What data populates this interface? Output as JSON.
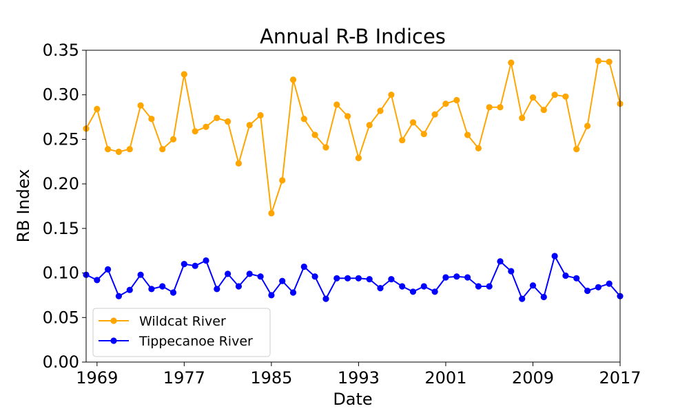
{
  "chart_data": {
    "type": "line",
    "title": "Annual R-B Indices",
    "xlabel": "Date",
    "ylabel": "RB Index",
    "xlim": [
      1968,
      2017
    ],
    "ylim": [
      0,
      0.35
    ],
    "x_ticks": [
      1969,
      1977,
      1985,
      1993,
      2001,
      2009,
      2017
    ],
    "y_ticks": [
      "0.00",
      "0.05",
      "0.10",
      "0.15",
      "0.20",
      "0.25",
      "0.30",
      "0.35"
    ],
    "grid": false,
    "legend_position": "lower-left",
    "x": [
      1968,
      1969,
      1970,
      1971,
      1972,
      1973,
      1974,
      1975,
      1976,
      1977,
      1978,
      1979,
      1980,
      1981,
      1982,
      1983,
      1984,
      1985,
      1986,
      1987,
      1988,
      1989,
      1990,
      1991,
      1992,
      1993,
      1994,
      1995,
      1996,
      1997,
      1998,
      1999,
      2000,
      2001,
      2002,
      2003,
      2004,
      2005,
      2006,
      2007,
      2008,
      2009,
      2010,
      2011,
      2012,
      2013,
      2014,
      2015,
      2016,
      2017
    ],
    "series": [
      {
        "name": "Wildcat River",
        "color": "#ffa500",
        "values": [
          0.262,
          0.284,
          0.239,
          0.236,
          0.239,
          0.288,
          0.273,
          0.239,
          0.25,
          0.323,
          0.259,
          0.264,
          0.274,
          0.27,
          0.223,
          0.266,
          0.277,
          0.167,
          0.204,
          0.317,
          0.273,
          0.255,
          0.241,
          0.289,
          0.276,
          0.229,
          0.266,
          0.282,
          0.3,
          0.249,
          0.269,
          0.256,
          0.278,
          0.29,
          0.294,
          0.255,
          0.24,
          0.286,
          0.286,
          0.336,
          0.274,
          0.297,
          0.283,
          0.3,
          0.298,
          0.239,
          0.265,
          0.338,
          0.337,
          0.29
        ]
      },
      {
        "name": "Tippecanoe River",
        "color": "#0000ff",
        "values": [
          0.098,
          0.092,
          0.104,
          0.074,
          0.081,
          0.098,
          0.082,
          0.085,
          0.078,
          0.11,
          0.108,
          0.114,
          0.082,
          0.099,
          0.085,
          0.099,
          0.096,
          0.075,
          0.091,
          0.078,
          0.107,
          0.096,
          0.071,
          0.094,
          0.094,
          0.094,
          0.093,
          0.083,
          0.093,
          0.085,
          0.079,
          0.085,
          0.079,
          0.095,
          0.096,
          0.095,
          0.085,
          0.085,
          0.113,
          0.102,
          0.071,
          0.086,
          0.073,
          0.119,
          0.097,
          0.094,
          0.08,
          0.084,
          0.088,
          0.074
        ]
      }
    ]
  }
}
